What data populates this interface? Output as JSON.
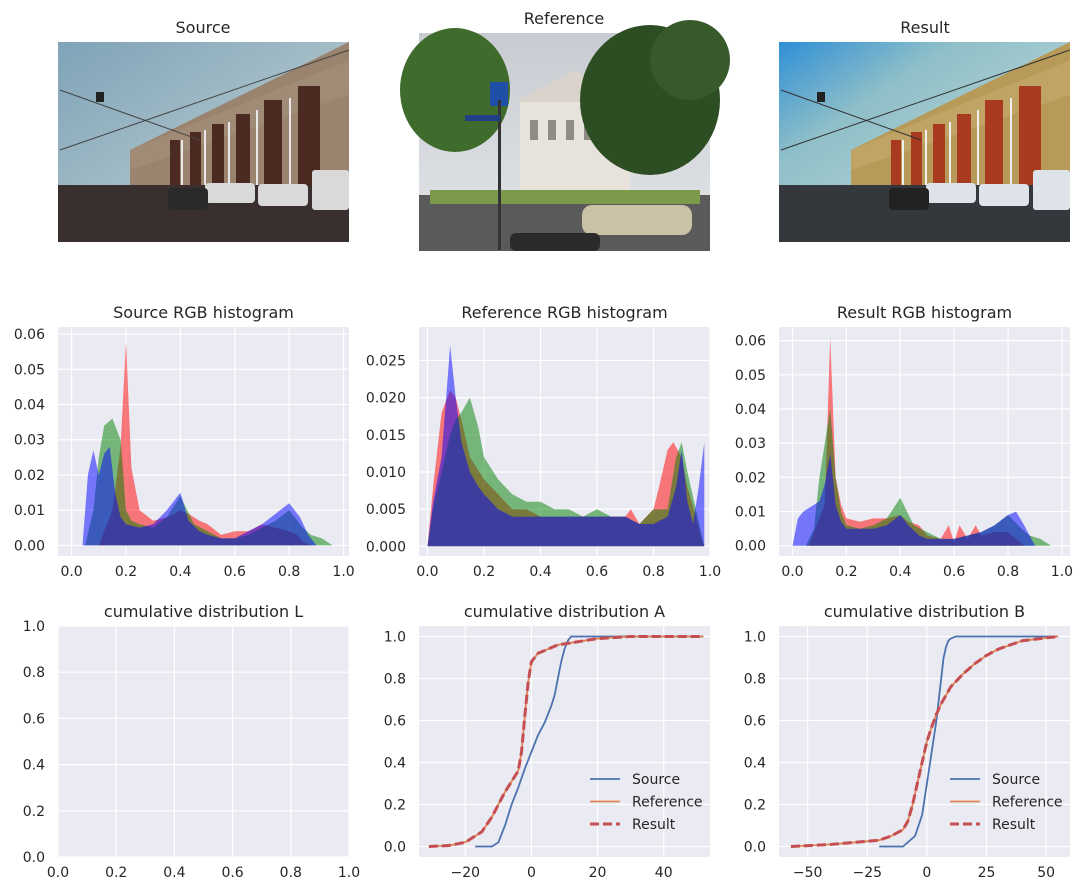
{
  "images": [
    {
      "title": "Source"
    },
    {
      "title": "Reference"
    },
    {
      "title": "Result"
    }
  ],
  "chart_data": [
    {
      "type": "area",
      "title": "Source RGB histogram",
      "xlim": [
        -0.05,
        1.02
      ],
      "ylim": [
        -0.003,
        0.062
      ],
      "xticks": [
        "0.0",
        "0.2",
        "0.4",
        "0.6",
        "0.8",
        "1.0"
      ],
      "yticks": [
        "0.00",
        "0.01",
        "0.02",
        "0.03",
        "0.04",
        "0.05",
        "0.06"
      ],
      "grid": true,
      "series": [
        {
          "color": "#ff0000",
          "x": [
            0.1,
            0.12,
            0.15,
            0.18,
            0.2,
            0.22,
            0.25,
            0.3,
            0.35,
            0.38,
            0.4,
            0.43,
            0.47,
            0.5,
            0.55,
            0.6,
            0.65,
            0.7,
            0.75,
            0.8,
            0.83,
            0.85,
            0.88
          ],
          "y": [
            0,
            0.004,
            0.01,
            0.028,
            0.058,
            0.022,
            0.01,
            0.007,
            0.008,
            0.009,
            0.01,
            0.009,
            0.007,
            0.006,
            0.003,
            0.004,
            0.004,
            0.006,
            0.005,
            0.004,
            0.003,
            0.001,
            0
          ]
        },
        {
          "color": "#008000",
          "x": [
            0.05,
            0.08,
            0.1,
            0.12,
            0.15,
            0.18,
            0.2,
            0.22,
            0.25,
            0.3,
            0.35,
            0.4,
            0.45,
            0.5,
            0.55,
            0.6,
            0.65,
            0.7,
            0.75,
            0.8,
            0.85,
            0.88,
            0.92,
            0.96
          ],
          "y": [
            0,
            0.01,
            0.025,
            0.034,
            0.036,
            0.03,
            0.01,
            0.007,
            0.006,
            0.005,
            0.008,
            0.014,
            0.006,
            0.004,
            0.002,
            0.002,
            0.003,
            0.005,
            0.007,
            0.01,
            0.005,
            0.003,
            0.002,
            0
          ]
        },
        {
          "color": "#0000ff",
          "x": [
            0.04,
            0.06,
            0.08,
            0.1,
            0.12,
            0.14,
            0.16,
            0.18,
            0.2,
            0.25,
            0.3,
            0.35,
            0.4,
            0.43,
            0.47,
            0.5,
            0.55,
            0.6,
            0.65,
            0.7,
            0.75,
            0.8,
            0.84,
            0.87,
            0.9
          ],
          "y": [
            0,
            0.02,
            0.027,
            0.02,
            0.026,
            0.028,
            0.015,
            0.008,
            0.006,
            0.005,
            0.006,
            0.01,
            0.015,
            0.007,
            0.004,
            0.003,
            0.002,
            0.002,
            0.004,
            0.006,
            0.009,
            0.012,
            0.008,
            0.003,
            0
          ]
        }
      ]
    },
    {
      "type": "area",
      "title": "Reference RGB histogram",
      "xlim": [
        -0.03,
        1.0
      ],
      "ylim": [
        -0.0013,
        0.0295
      ],
      "xticks": [
        "0.0",
        "0.2",
        "0.4",
        "0.6",
        "0.8",
        "1.0"
      ],
      "yticks": [
        "0.000",
        "0.005",
        "0.010",
        "0.015",
        "0.020",
        "0.025"
      ],
      "grid": true,
      "series": [
        {
          "color": "#ff0000",
          "x": [
            0.0,
            0.02,
            0.05,
            0.08,
            0.1,
            0.12,
            0.15,
            0.2,
            0.25,
            0.3,
            0.35,
            0.4,
            0.45,
            0.5,
            0.55,
            0.6,
            0.65,
            0.7,
            0.72,
            0.75,
            0.8,
            0.82,
            0.85,
            0.87,
            0.9,
            0.92,
            0.95,
            0.97,
            0.98
          ],
          "y": [
            0,
            0.008,
            0.018,
            0.021,
            0.02,
            0.017,
            0.012,
            0.009,
            0.007,
            0.005,
            0.005,
            0.004,
            0.004,
            0.004,
            0.004,
            0.004,
            0.004,
            0.004,
            0.005,
            0.003,
            0.005,
            0.008,
            0.013,
            0.014,
            0.012,
            0.008,
            0.004,
            0.001,
            0
          ]
        },
        {
          "color": "#008000",
          "x": [
            0.0,
            0.02,
            0.05,
            0.08,
            0.1,
            0.12,
            0.15,
            0.18,
            0.2,
            0.25,
            0.3,
            0.35,
            0.4,
            0.45,
            0.5,
            0.55,
            0.6,
            0.65,
            0.7,
            0.75,
            0.8,
            0.85,
            0.88,
            0.9,
            0.92,
            0.95,
            0.98
          ],
          "y": [
            0,
            0.005,
            0.01,
            0.015,
            0.017,
            0.018,
            0.02,
            0.016,
            0.012,
            0.009,
            0.007,
            0.006,
            0.006,
            0.005,
            0.005,
            0.004,
            0.005,
            0.004,
            0.004,
            0.003,
            0.005,
            0.005,
            0.012,
            0.014,
            0.01,
            0.005,
            0
          ]
        },
        {
          "color": "#0000ff",
          "x": [
            0.0,
            0.02,
            0.05,
            0.07,
            0.08,
            0.1,
            0.12,
            0.15,
            0.18,
            0.2,
            0.25,
            0.3,
            0.35,
            0.4,
            0.45,
            0.5,
            0.55,
            0.6,
            0.65,
            0.7,
            0.75,
            0.8,
            0.85,
            0.88,
            0.9,
            0.92,
            0.94,
            0.96,
            0.98
          ],
          "y": [
            0,
            0.006,
            0.012,
            0.022,
            0.027,
            0.02,
            0.014,
            0.01,
            0.008,
            0.007,
            0.005,
            0.004,
            0.004,
            0.004,
            0.004,
            0.004,
            0.004,
            0.004,
            0.004,
            0.004,
            0.003,
            0.003,
            0.004,
            0.008,
            0.013,
            0.006,
            0.003,
            0.008,
            0.014
          ]
        }
      ]
    },
    {
      "type": "area",
      "title": "Result RGB histogram",
      "xlim": [
        -0.05,
        1.03
      ],
      "ylim": [
        -0.003,
        0.064
      ],
      "xticks": [
        "0.0",
        "0.2",
        "0.4",
        "0.6",
        "0.8",
        "1.0"
      ],
      "yticks": [
        "0.00",
        "0.01",
        "0.02",
        "0.03",
        "0.04",
        "0.05",
        "0.06"
      ],
      "grid": true,
      "series": [
        {
          "color": "#ff0000",
          "x": [
            0.06,
            0.08,
            0.1,
            0.12,
            0.14,
            0.16,
            0.18,
            0.2,
            0.25,
            0.3,
            0.35,
            0.4,
            0.43,
            0.47,
            0.5,
            0.55,
            0.58,
            0.6,
            0.62,
            0.65,
            0.68,
            0.7,
            0.75,
            0.8,
            0.83,
            0.86
          ],
          "y": [
            0,
            0.004,
            0.008,
            0.012,
            0.061,
            0.02,
            0.012,
            0.008,
            0.007,
            0.008,
            0.008,
            0.009,
            0.007,
            0.006,
            0.003,
            0.002,
            0.006,
            0.001,
            0.006,
            0.002,
            0.006,
            0.003,
            0.004,
            0.004,
            0.002,
            0
          ]
        },
        {
          "color": "#008000",
          "x": [
            0.05,
            0.08,
            0.1,
            0.12,
            0.14,
            0.16,
            0.18,
            0.2,
            0.25,
            0.3,
            0.35,
            0.4,
            0.45,
            0.5,
            0.55,
            0.6,
            0.65,
            0.7,
            0.75,
            0.8,
            0.85,
            0.88,
            0.92,
            0.96
          ],
          "y": [
            0,
            0.005,
            0.02,
            0.03,
            0.04,
            0.02,
            0.01,
            0.006,
            0.005,
            0.006,
            0.008,
            0.014,
            0.006,
            0.004,
            0.002,
            0.002,
            0.003,
            0.004,
            0.006,
            0.009,
            0.005,
            0.003,
            0.002,
            0
          ]
        },
        {
          "color": "#0000ff",
          "x": [
            0.0,
            0.02,
            0.04,
            0.06,
            0.08,
            0.1,
            0.12,
            0.14,
            0.16,
            0.18,
            0.2,
            0.25,
            0.3,
            0.35,
            0.4,
            0.43,
            0.47,
            0.5,
            0.55,
            0.6,
            0.65,
            0.7,
            0.75,
            0.8,
            0.83,
            0.86,
            0.9
          ],
          "y": [
            0,
            0.008,
            0.01,
            0.011,
            0.012,
            0.013,
            0.018,
            0.027,
            0.012,
            0.007,
            0.005,
            0.005,
            0.005,
            0.006,
            0.009,
            0.006,
            0.003,
            0.002,
            0.002,
            0.002,
            0.003,
            0.004,
            0.006,
            0.009,
            0.01,
            0.006,
            0
          ]
        }
      ]
    },
    {
      "type": "line",
      "title": "cumulative distribution L",
      "xlim": [
        0,
        1
      ],
      "ylim": [
        0,
        1
      ],
      "xticks": [
        "0.0",
        "0.2",
        "0.4",
        "0.6",
        "0.8",
        "1.0"
      ],
      "yticks": [
        "0.0",
        "0.2",
        "0.4",
        "0.6",
        "0.8",
        "1.0"
      ],
      "grid": true,
      "series": []
    },
    {
      "type": "line",
      "title": "cumulative distribution A",
      "xlim": [
        -34,
        54
      ],
      "ylim": [
        -0.05,
        1.05
      ],
      "xticks": [
        "−20",
        "0",
        "20",
        "40"
      ],
      "xtick_values": [
        -20,
        0,
        20,
        40
      ],
      "yticks": [
        "0.0",
        "0.2",
        "0.4",
        "0.6",
        "0.8",
        "1.0"
      ],
      "grid": true,
      "legend": "lower-right",
      "series": [
        {
          "name": "Source",
          "color": "#4c72b0",
          "style": "solid",
          "x": [
            -17,
            -12,
            -10,
            -8,
            -6,
            -4,
            -2,
            0,
            2,
            4,
            6,
            7,
            8,
            9,
            10,
            11,
            12,
            20,
            52
          ],
          "y": [
            0,
            0,
            0.02,
            0.1,
            0.2,
            0.28,
            0.37,
            0.45,
            0.53,
            0.59,
            0.67,
            0.72,
            0.8,
            0.88,
            0.94,
            0.98,
            1,
            1,
            1
          ]
        },
        {
          "name": "Reference",
          "color": "#dd8452",
          "style": "solid",
          "x": [
            -31,
            -25,
            -20,
            -15,
            -12,
            -10,
            -8,
            -6,
            -4,
            -3,
            -2,
            -1,
            0,
            2,
            5,
            8,
            12,
            16,
            20,
            30,
            40,
            52
          ],
          "y": [
            0,
            0.005,
            0.02,
            0.07,
            0.14,
            0.2,
            0.26,
            0.31,
            0.36,
            0.45,
            0.62,
            0.78,
            0.88,
            0.92,
            0.94,
            0.96,
            0.97,
            0.98,
            0.99,
            1,
            1,
            1
          ]
        },
        {
          "name": "Result",
          "color": "#c44e52",
          "style": "dashed",
          "x": [
            -31,
            -25,
            -20,
            -15,
            -12,
            -10,
            -8,
            -6,
            -4,
            -3,
            -2,
            -1,
            0,
            2,
            5,
            8,
            12,
            16,
            20,
            30,
            40,
            52
          ],
          "y": [
            0,
            0.005,
            0.02,
            0.07,
            0.14,
            0.2,
            0.26,
            0.31,
            0.36,
            0.45,
            0.62,
            0.78,
            0.88,
            0.92,
            0.94,
            0.96,
            0.97,
            0.98,
            0.99,
            1,
            1,
            1
          ]
        }
      ]
    },
    {
      "type": "line",
      "title": "cumulative distribution B",
      "xlim": [
        -62,
        60
      ],
      "ylim": [
        -0.05,
        1.05
      ],
      "xticks": [
        "−50",
        "−25",
        "0",
        "25",
        "50"
      ],
      "xtick_values": [
        -50,
        -25,
        0,
        25,
        50
      ],
      "yticks": [
        "0.0",
        "0.2",
        "0.4",
        "0.6",
        "0.8",
        "1.0"
      ],
      "grid": true,
      "legend": "lower-right",
      "series": [
        {
          "name": "Source",
          "color": "#4c72b0",
          "style": "solid",
          "x": [
            -20,
            -10,
            -5,
            -2,
            0,
            2,
            4,
            5,
            6,
            7,
            8,
            9,
            10,
            12,
            15,
            20,
            55
          ],
          "y": [
            0,
            0,
            0.05,
            0.15,
            0.3,
            0.45,
            0.6,
            0.7,
            0.8,
            0.9,
            0.95,
            0.98,
            0.99,
            1,
            1,
            1,
            1
          ]
        },
        {
          "name": "Reference",
          "color": "#dd8452",
          "style": "solid",
          "x": [
            -57,
            -40,
            -30,
            -20,
            -15,
            -10,
            -8,
            -6,
            -4,
            -2,
            0,
            2,
            4,
            6,
            8,
            10,
            15,
            20,
            25,
            30,
            40,
            55
          ],
          "y": [
            0,
            0.01,
            0.02,
            0.03,
            0.05,
            0.08,
            0.12,
            0.2,
            0.3,
            0.4,
            0.5,
            0.57,
            0.63,
            0.68,
            0.72,
            0.76,
            0.82,
            0.87,
            0.91,
            0.94,
            0.98,
            1
          ]
        },
        {
          "name": "Result",
          "color": "#c44e52",
          "style": "dashed",
          "x": [
            -57,
            -40,
            -30,
            -20,
            -15,
            -10,
            -8,
            -6,
            -4,
            -2,
            0,
            2,
            4,
            6,
            8,
            10,
            15,
            20,
            25,
            30,
            40,
            55
          ],
          "y": [
            0,
            0.01,
            0.02,
            0.03,
            0.05,
            0.08,
            0.12,
            0.2,
            0.3,
            0.4,
            0.5,
            0.57,
            0.63,
            0.68,
            0.72,
            0.76,
            0.82,
            0.87,
            0.91,
            0.94,
            0.98,
            1
          ]
        }
      ]
    }
  ]
}
